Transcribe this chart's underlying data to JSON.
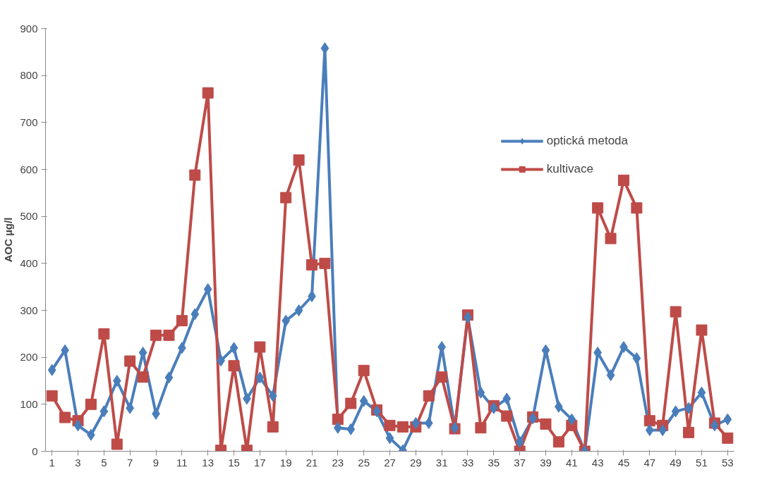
{
  "chart_data": {
    "type": "line",
    "ylabel": "AOC µg/l",
    "x": [
      1,
      2,
      3,
      4,
      5,
      6,
      7,
      8,
      9,
      10,
      11,
      12,
      13,
      14,
      15,
      16,
      17,
      18,
      19,
      20,
      21,
      22,
      23,
      24,
      25,
      26,
      27,
      28,
      29,
      30,
      31,
      32,
      33,
      34,
      35,
      36,
      37,
      38,
      39,
      40,
      41,
      42,
      43,
      44,
      45,
      46,
      47,
      48,
      49,
      50,
      51,
      52,
      53
    ],
    "xlim": [
      0.5,
      53.5
    ],
    "xticks": [
      1,
      3,
      5,
      7,
      9,
      11,
      13,
      15,
      17,
      19,
      21,
      23,
      25,
      27,
      29,
      31,
      33,
      35,
      37,
      39,
      41,
      43,
      45,
      47,
      49,
      51,
      53
    ],
    "ylim": [
      0,
      900
    ],
    "yticks": [
      0,
      100,
      200,
      300,
      400,
      500,
      600,
      700,
      800,
      900
    ],
    "series": [
      {
        "name": "optická metoda",
        "color": "#4a7ebb",
        "marker": "diamond",
        "values": [
          173,
          215,
          55,
          35,
          85,
          150,
          92,
          210,
          80,
          157,
          220,
          292,
          345,
          193,
          220,
          112,
          157,
          118,
          278,
          300,
          330,
          858,
          50,
          47,
          107,
          85,
          28,
          2,
          60,
          60,
          222,
          50,
          285,
          125,
          92,
          112,
          20,
          70,
          215,
          95,
          68,
          0,
          210,
          162,
          222,
          198,
          45,
          45,
          85,
          92,
          125,
          55,
          68
        ]
      },
      {
        "name": "kultivace",
        "color": "#be4b48",
        "marker": "square",
        "values": [
          118,
          72,
          65,
          100,
          250,
          15,
          192,
          158,
          247,
          247,
          278,
          588,
          763,
          2,
          182,
          2,
          222,
          52,
          540,
          620,
          397,
          400,
          68,
          102,
          172,
          88,
          55,
          52,
          52,
          118,
          158,
          48,
          290,
          50,
          97,
          75,
          0,
          73,
          58,
          20,
          55,
          0,
          518,
          453,
          577,
          518,
          65,
          55,
          297,
          40,
          258,
          60,
          28
        ]
      }
    ],
    "grid": false,
    "legend": "top right",
    "line_style": "solid"
  }
}
